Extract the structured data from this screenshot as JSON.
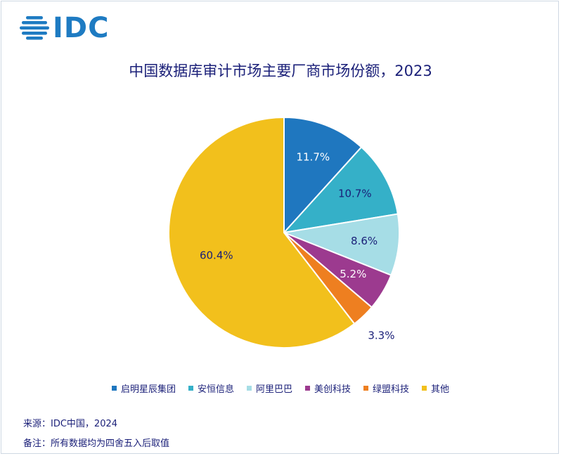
{
  "brand": {
    "logo_text": "IDC"
  },
  "title": "中国数据库审计市场主要厂商市场份额，2023",
  "chart_data": {
    "type": "pie",
    "title": "中国数据库审计市场主要厂商市场份额，2023",
    "start_angle_deg": 0,
    "direction": "clockwise",
    "legend_position": "bottom",
    "slices": [
      {
        "label": "启明星辰集团",
        "value": 11.7,
        "display": "11.7%",
        "color": "#1f77bf",
        "label_color": "#ffffff"
      },
      {
        "label": "安恒信息",
        "value": 10.7,
        "display": "10.7%",
        "color": "#35b0c8",
        "label_color": "#1a1f78"
      },
      {
        "label": "阿里巴巴",
        "value": 8.6,
        "display": "8.6%",
        "color": "#a6dde6",
        "label_color": "#1a1f78"
      },
      {
        "label": "美创科技",
        "value": 5.2,
        "display": "5.2%",
        "color": "#9c3a8f",
        "label_color": "#ffffff"
      },
      {
        "label": "绿盟科技",
        "value": 3.3,
        "display": "3.3%",
        "color": "#ee7f20",
        "label_color": "#1a1f78"
      },
      {
        "label": "其他",
        "value": 60.4,
        "display": "60.4%",
        "color": "#f2c01c",
        "label_color": "#1a1f78"
      }
    ]
  },
  "footer": {
    "source": "来源：IDC中国，2024",
    "note": "备注：所有数据均为四舍五入后取值"
  }
}
